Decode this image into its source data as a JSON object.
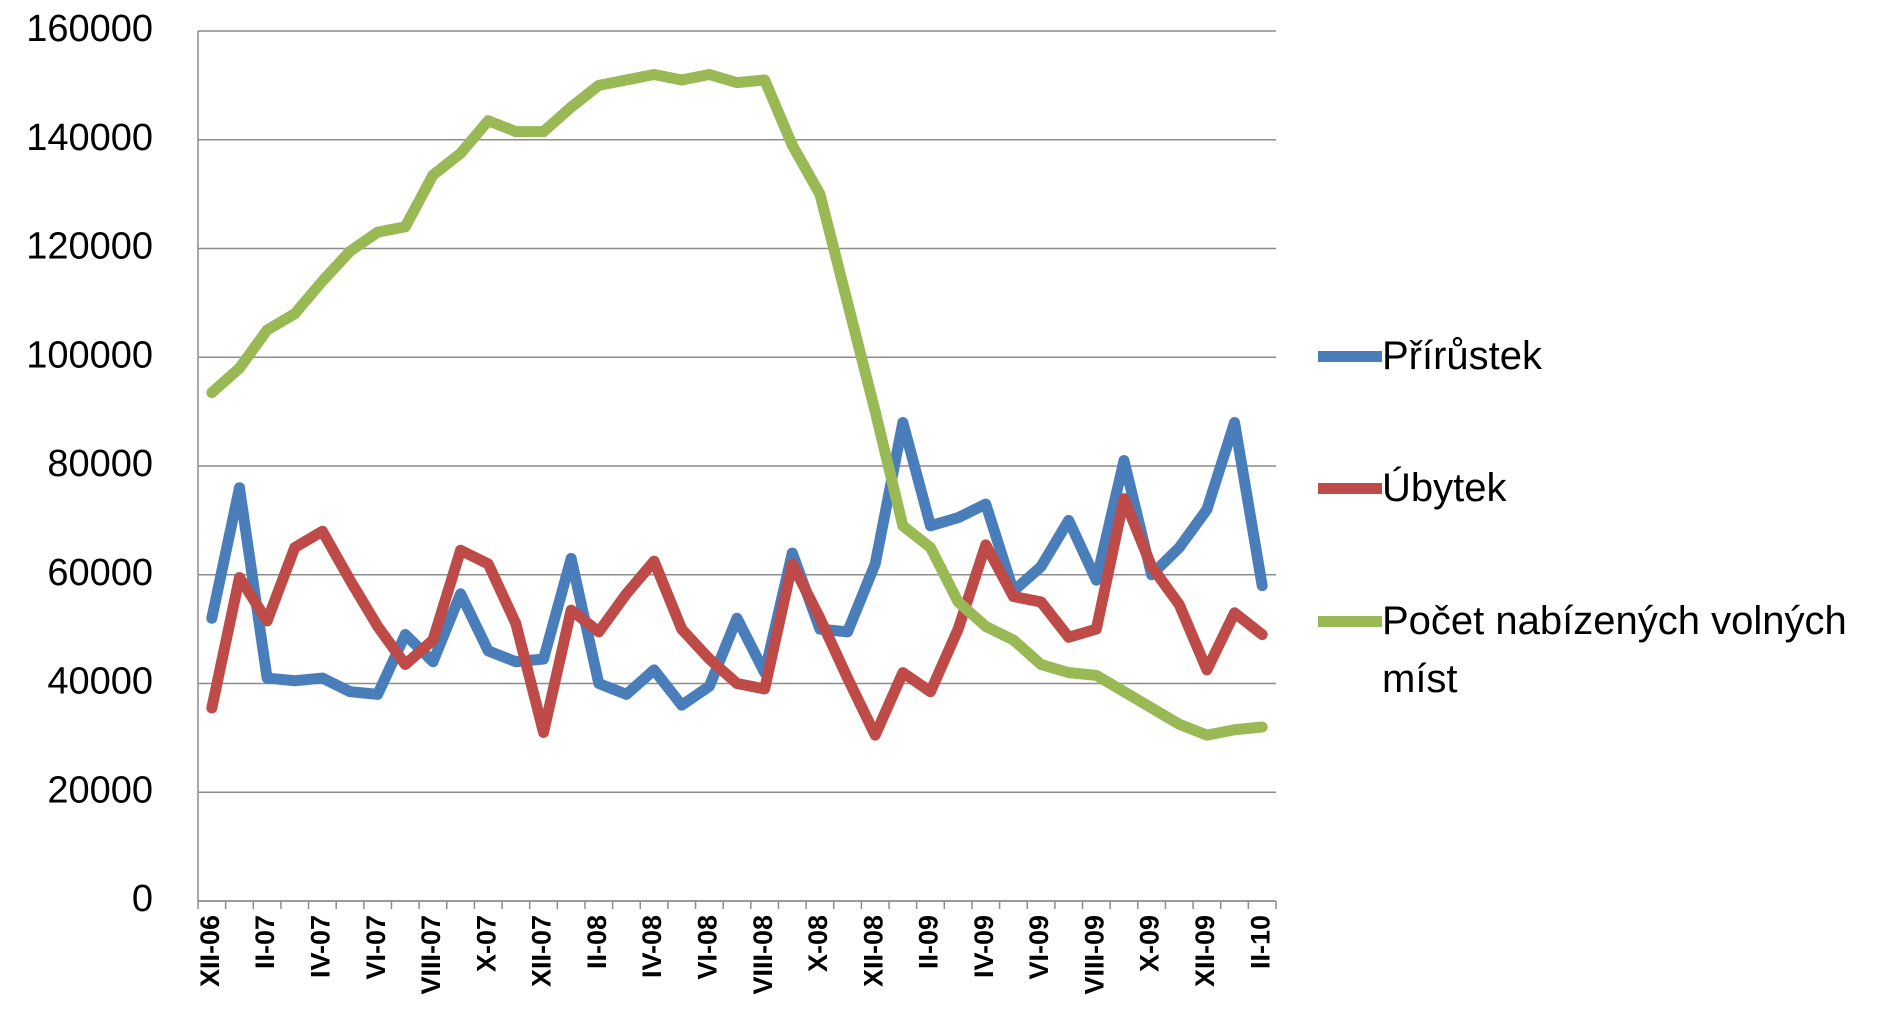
{
  "chart_data": {
    "type": "line",
    "categories": [
      "XII-06",
      null,
      "II-07",
      null,
      "IV-07",
      null,
      "VI-07",
      null,
      "VIII-07",
      null,
      "X-07",
      null,
      "XII-07",
      null,
      "II-08",
      null,
      "IV-08",
      null,
      "VI-08",
      null,
      "VIII-08",
      null,
      "X-08",
      null,
      "XII-08",
      null,
      "II-09",
      null,
      "IV-09",
      null,
      "VI-09",
      null,
      "VIII-09",
      null,
      "X-09",
      null,
      "XII-09",
      null,
      "II-10"
    ],
    "series": [
      {
        "name": "Přírůstek",
        "color": "#4a7ebb",
        "values": [
          52000,
          76000,
          41000,
          40500,
          41000,
          38500,
          38000,
          49000,
          44000,
          56500,
          46000,
          44000,
          44500,
          63000,
          40000,
          38000,
          42500,
          36000,
          39500,
          52000,
          42000,
          64000,
          50000,
          49500,
          62000,
          88000,
          69000,
          70500,
          73000,
          57000,
          61500,
          70000,
          59000,
          81000,
          60000,
          65000,
          72000,
          88000,
          58000
        ]
      },
      {
        "name": "Úbytek",
        "color": "#be4b48",
        "values": [
          35500,
          59500,
          51500,
          65000,
          68000,
          59000,
          50500,
          43500,
          48000,
          64500,
          62000,
          51000,
          31000,
          53500,
          49500,
          56500,
          62500,
          50000,
          44500,
          40000,
          39000,
          62000,
          52000,
          41000,
          30500,
          42000,
          38500,
          50000,
          65500,
          56000,
          55000,
          48500,
          50000,
          74000,
          61500,
          54500,
          42500,
          53000,
          49000
        ]
      },
      {
        "name": "Počet nabízených volných míst",
        "color": "#98b954",
        "values": [
          93500,
          98000,
          105000,
          108000,
          114000,
          119500,
          123000,
          124000,
          133500,
          137500,
          143500,
          141500,
          141500,
          146000,
          150000,
          151000,
          152000,
          151000,
          152000,
          150500,
          151000,
          139000,
          130000,
          110000,
          90000,
          69000,
          65000,
          55000,
          50500,
          48000,
          43500,
          42000,
          41500,
          38500,
          35500,
          32500,
          30500,
          31500,
          32000
        ]
      }
    ],
    "ylim": [
      0,
      160000
    ],
    "yticks": [
      0,
      20000,
      40000,
      60000,
      80000,
      100000,
      120000,
      140000,
      160000
    ],
    "grid": true,
    "legend": "right"
  }
}
